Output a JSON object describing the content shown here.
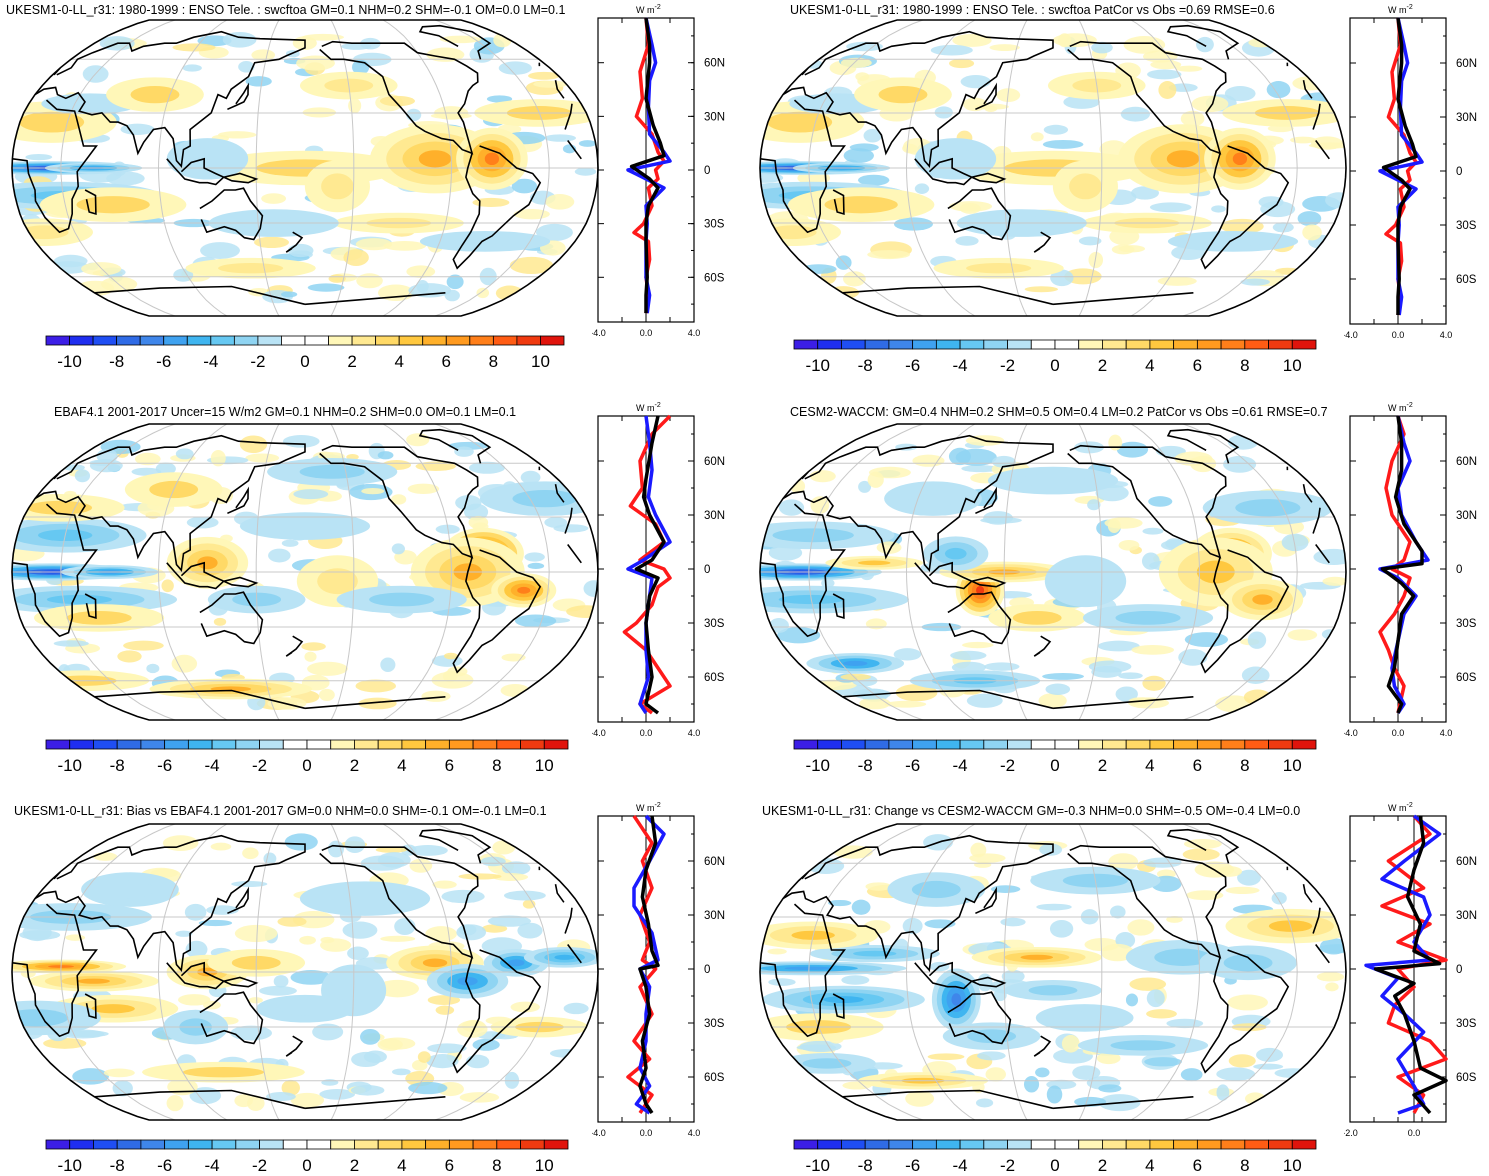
{
  "colorbar": {
    "tick_labels": [
      "-10",
      "-8",
      "-6",
      "-4",
      "-2",
      "0",
      "2",
      "4",
      "6",
      "8",
      "10"
    ],
    "colors": [
      "#3c1ee6",
      "#1f2ef0",
      "#1f4ef3",
      "#2f6be6",
      "#3f86ea",
      "#3fa2f0",
      "#3fb5f0",
      "#66c8f2",
      "#8fd4f2",
      "#b9e3f5",
      "#ffffff",
      "#ffffff",
      "#fff7b8",
      "#ffe991",
      "#ffd966",
      "#ffc83f",
      "#ffb02a",
      "#ff9a1f",
      "#ff7f1a",
      "#ff5c14",
      "#f03a10",
      "#e0140c"
    ]
  },
  "profile_unit": "W m",
  "profile_unit_sup": "-2",
  "lat_labels": [
    "60N",
    "30N",
    "0",
    "30S",
    "60S"
  ],
  "panels": [
    {
      "title": "UKESM1-0-LL_r31: 1980-1999 : ENSO Tele. : swcftoa GM=0.1 NHM=0.2 SHM=-0.1 OM=0.0 LM=0.1",
      "profile_xlabels": [
        "-4.0",
        "0.0",
        "4.0"
      ]
    },
    {
      "title": "UKESM1-0-LL_r31: 1980-1999 : ENSO Tele. : swcftoa PatCor vs Obs =0.69 RMSE=0.6",
      "profile_xlabels": [
        "-4.0",
        "0.0",
        "4.0"
      ]
    },
    {
      "title": "EBAF4.1 2001-2017 Uncer=15 W/m2 GM=0.1 NHM=0.2 SHM=0.0 OM=0.1 LM=0.1",
      "profile_xlabels": [
        "-4.0",
        "0.0",
        "4.0"
      ]
    },
    {
      "title": "CESM2-WACCM: GM=0.4 NHM=0.2 SHM=0.5 OM=0.4 LM=0.2 PatCor vs Obs =0.61 RMSE=0.7",
      "profile_xlabels": [
        "-4.0",
        "0.0",
        "4.0"
      ]
    },
    {
      "title": "UKESM1-0-LL_r31: Bias vs EBAF4.1 2001-2017 GM=0.0 NHM=0.0 SHM=-0.1 OM=-0.1 LM=0.1",
      "profile_xlabels": [
        "-4.0",
        "0.0",
        "4.0"
      ]
    },
    {
      "title": "UKESM1-0-LL_r31: Change vs CESM2-WACCM GM=-0.3 NHM=0.0 SHM=-0.5 OM=-0.4 LM=0.0",
      "profile_xlabels": [
        "-2.0",
        "0.0",
        ""
      ]
    }
  ]
}
